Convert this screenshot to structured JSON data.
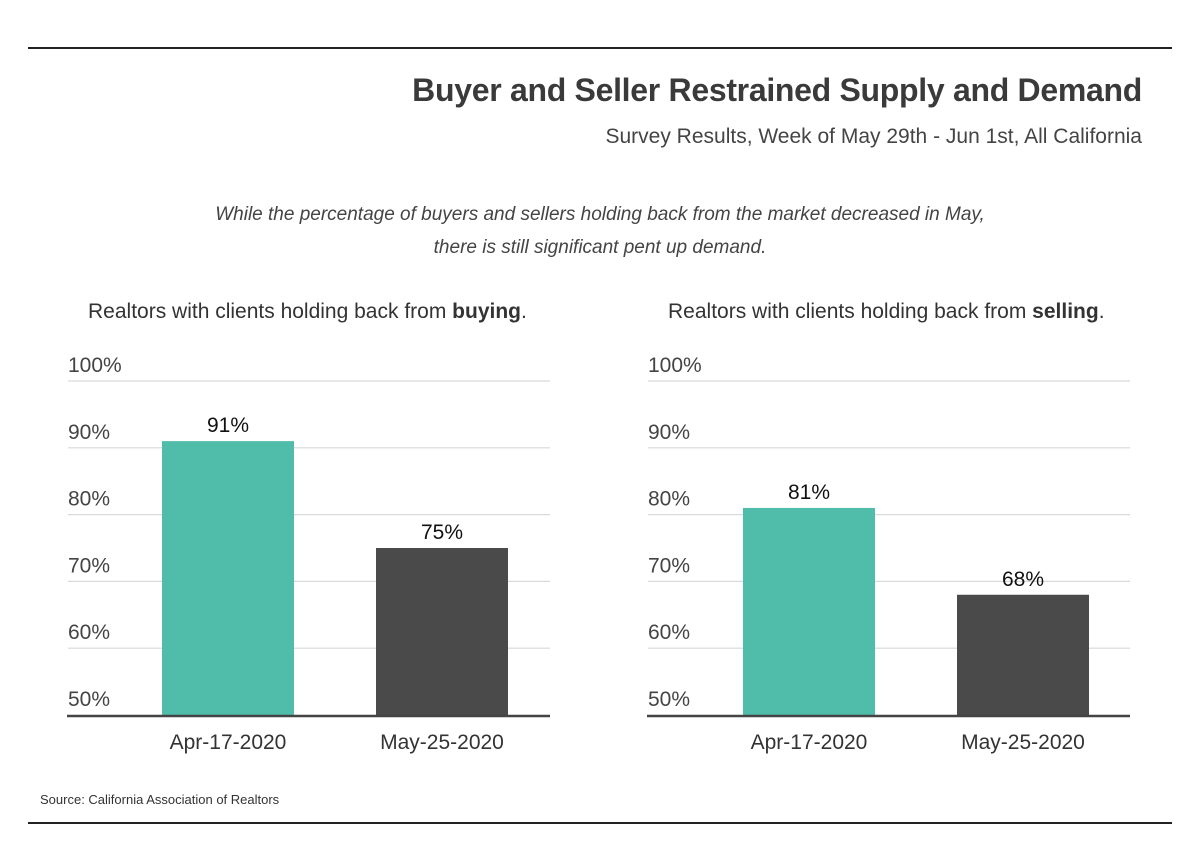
{
  "header": {
    "title": "Buyer and Seller Restrained Supply and Demand",
    "subtitle": "Survey Results, Week of May 29th - Jun 1st, All California"
  },
  "note": {
    "line1": "While the percentage of buyers and sellers holding back from the market decreased in May,",
    "line2": "there is still significant pent up demand."
  },
  "panels": [
    {
      "title_prefix": "Realtors with clients holding back from ",
      "title_bold": "buying",
      "title_suffix": "."
    },
    {
      "title_prefix": "Realtors with clients holding back from ",
      "title_bold": "selling",
      "title_suffix": "."
    }
  ],
  "source": "Source:  California Association of Realtors",
  "colors": {
    "teal": "#4fbda9",
    "dark": "#4a4a4a",
    "grid": "#d9d9d9",
    "axis": "#444444"
  },
  "chart_data": [
    {
      "type": "bar",
      "title": "Realtors with clients holding back from buying.",
      "categories": [
        "Apr-17-2020",
        "May-25-2020"
      ],
      "values": [
        91,
        75
      ],
      "value_labels": [
        "91%",
        "75%"
      ],
      "bar_colors": [
        "#4fbda9",
        "#4a4a4a"
      ],
      "ylim": [
        50,
        100
      ],
      "yticks": [
        50,
        60,
        70,
        80,
        90,
        100
      ],
      "ytick_labels": [
        "50%",
        "60%",
        "70%",
        "80%",
        "90%",
        "100%"
      ],
      "grid": true
    },
    {
      "type": "bar",
      "title": "Realtors with clients holding back from selling.",
      "categories": [
        "Apr-17-2020",
        "May-25-2020"
      ],
      "values": [
        81,
        68
      ],
      "value_labels": [
        "81%",
        "68%"
      ],
      "bar_colors": [
        "#4fbda9",
        "#4a4a4a"
      ],
      "ylim": [
        50,
        100
      ],
      "yticks": [
        50,
        60,
        70,
        80,
        90,
        100
      ],
      "ytick_labels": [
        "50%",
        "60%",
        "70%",
        "80%",
        "90%",
        "100%"
      ],
      "grid": true
    }
  ]
}
